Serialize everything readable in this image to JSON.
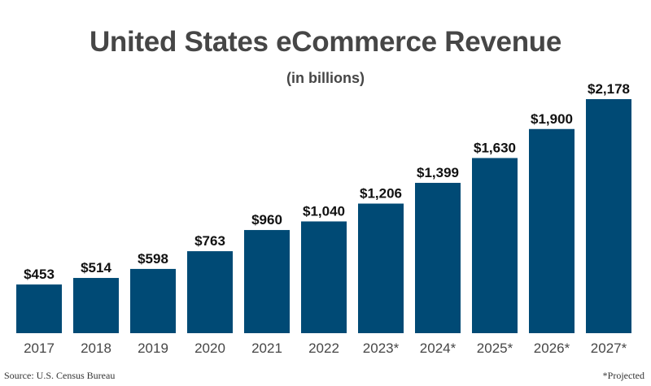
{
  "chart_data": {
    "type": "bar",
    "title": "United States eCommerce Revenue",
    "subtitle": "(in billions)",
    "categories": [
      "2017",
      "2018",
      "2019",
      "2020",
      "2021",
      "2022",
      "2023*",
      "2024*",
      "2025*",
      "2026*",
      "2027*"
    ],
    "values": [
      453,
      514,
      598,
      763,
      960,
      1040,
      1206,
      1399,
      1630,
      1900,
      2178
    ],
    "value_labels": [
      "$453",
      "$514",
      "$598",
      "$763",
      "$960",
      "$1,040",
      "$1,206",
      "$1,399",
      "$1,630",
      "$1,900",
      "$2,178"
    ],
    "xlabel": "",
    "ylabel": "",
    "ylim": [
      0,
      2178
    ],
    "grid": false,
    "bar_color": "#004a75",
    "source": "Source: U.S. Census Bureau",
    "note": "*Projected"
  }
}
